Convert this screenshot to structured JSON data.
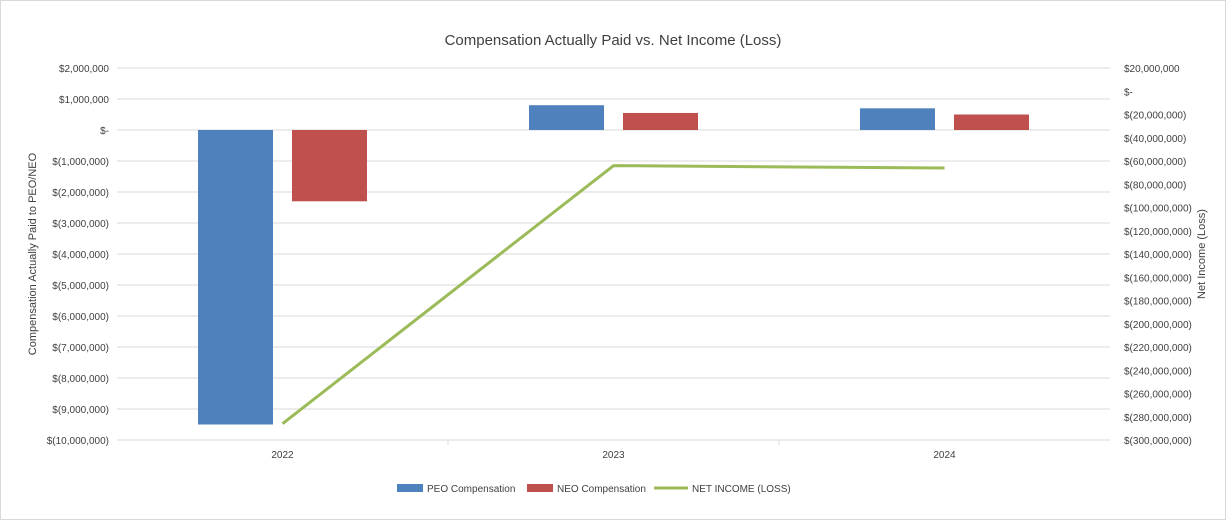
{
  "chart_data": {
    "type": "bar",
    "title": "Compensation Actually Paid vs. Net Income (Loss)",
    "categories": [
      "2022",
      "2023",
      "2024"
    ],
    "ylabel": "Compensation Actually Paid to PEO/NEO",
    "y2label": "Net Income (Loss)",
    "ylim": [
      -10000000,
      2000000
    ],
    "y2lim": [
      -300000000,
      20000000
    ],
    "yticks": [
      "$2,000,000",
      "$1,000,000",
      "$-",
      "$(1,000,000)",
      "$(2,000,000)",
      "$(3,000,000)",
      "$(4,000,000)",
      "$(5,000,000)",
      "$(6,000,000)",
      "$(7,000,000)",
      "$(8,000,000)",
      "$(9,000,000)",
      "$(10,000,000)"
    ],
    "y2ticks": [
      "$20,000,000",
      "$-",
      "$(20,000,000)",
      "$(40,000,000)",
      "$(60,000,000)",
      "$(80,000,000)",
      "$(100,000,000)",
      "$(120,000,000)",
      "$(140,000,000)",
      "$(160,000,000)",
      "$(180,000,000)",
      "$(200,000,000)",
      "$(220,000,000)",
      "$(240,000,000)",
      "$(260,000,000)",
      "$(280,000,000)",
      "$(300,000,000)"
    ],
    "series": [
      {
        "name": "PEO Compensation",
        "kind": "bar",
        "axis": "left",
        "color": "#4f81bd",
        "values": [
          -9500000,
          800000,
          700000
        ]
      },
      {
        "name": "NEO Compensation",
        "kind": "bar",
        "axis": "left",
        "color": "#c0504d",
        "values": [
          -2300000,
          550000,
          500000
        ]
      },
      {
        "name": "NET INCOME (LOSS)",
        "kind": "line",
        "axis": "right",
        "color": "#9bbb59",
        "values": [
          -286000000,
          -64000000,
          -66000000
        ]
      }
    ],
    "grid": true,
    "legend": "bottom"
  }
}
